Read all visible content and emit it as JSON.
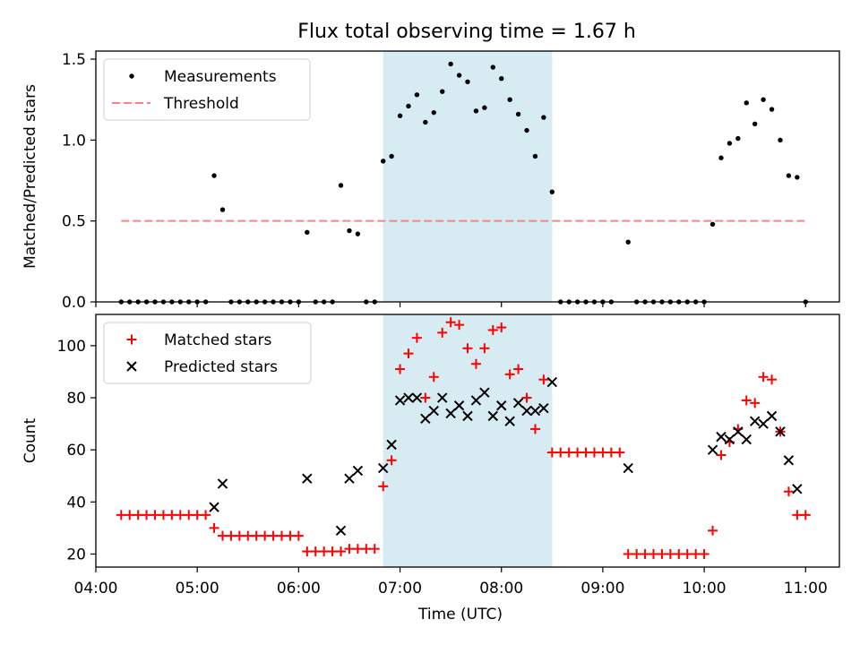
{
  "figure": {
    "title": "Flux total observing time = 1.67 h"
  },
  "chart_data": [
    {
      "type": "scatter",
      "ylabel": "Matched/Predicted stars",
      "xlabel": "",
      "xlim": [
        "04:00",
        "11:20"
      ],
      "ylim": [
        0,
        1.55
      ],
      "y_ticks": [
        0.0,
        0.5,
        1.0,
        1.5
      ],
      "y_tick_labels": [
        "0.0",
        "0.5",
        "1.0",
        "1.5"
      ],
      "x_tick_labels_visible": false,
      "legend": {
        "location": "upper-left",
        "entries": [
          "Measurements",
          "Threshold"
        ]
      },
      "shaded_region": {
        "x": [
          "06:50",
          "08:30"
        ],
        "color": "#add8e6"
      },
      "threshold": {
        "name": "Threshold",
        "x": [
          "04:15",
          "11:00"
        ],
        "y": 0.5,
        "color": "#ff8080",
        "style": "dashed"
      },
      "series": [
        {
          "name": "Measurements",
          "marker": "dot",
          "color": "#000000",
          "points": [
            [
              "04:15",
              0
            ],
            [
              "04:20",
              0
            ],
            [
              "04:25",
              0
            ],
            [
              "04:30",
              0
            ],
            [
              "04:35",
              0
            ],
            [
              "04:40",
              0
            ],
            [
              "04:45",
              0
            ],
            [
              "04:50",
              0
            ],
            [
              "04:55",
              0
            ],
            [
              "05:00",
              0
            ],
            [
              "05:05",
              0
            ],
            [
              "05:10",
              0.78
            ],
            [
              "05:15",
              0.57
            ],
            [
              "05:20",
              0
            ],
            [
              "05:25",
              0
            ],
            [
              "05:30",
              0
            ],
            [
              "05:35",
              0
            ],
            [
              "05:40",
              0
            ],
            [
              "05:45",
              0
            ],
            [
              "05:50",
              0
            ],
            [
              "05:55",
              0
            ],
            [
              "06:00",
              0
            ],
            [
              "06:05",
              0.43
            ],
            [
              "06:10",
              0
            ],
            [
              "06:15",
              0
            ],
            [
              "06:20",
              0
            ],
            [
              "06:25",
              0.72
            ],
            [
              "06:30",
              0.44
            ],
            [
              "06:35",
              0.42
            ],
            [
              "06:40",
              0
            ],
            [
              "06:45",
              0
            ],
            [
              "06:50",
              0.87
            ],
            [
              "06:55",
              0.9
            ],
            [
              "07:00",
              1.15
            ],
            [
              "07:05",
              1.21
            ],
            [
              "07:10",
              1.28
            ],
            [
              "07:15",
              1.11
            ],
            [
              "07:20",
              1.17
            ],
            [
              "07:25",
              1.3
            ],
            [
              "07:30",
              1.47
            ],
            [
              "07:35",
              1.4
            ],
            [
              "07:40",
              1.36
            ],
            [
              "07:45",
              1.18
            ],
            [
              "07:50",
              1.2
            ],
            [
              "07:55",
              1.45
            ],
            [
              "08:00",
              1.38
            ],
            [
              "08:05",
              1.25
            ],
            [
              "08:10",
              1.16
            ],
            [
              "08:15",
              1.06
            ],
            [
              "08:20",
              0.9
            ],
            [
              "08:25",
              1.14
            ],
            [
              "08:30",
              0.68
            ],
            [
              "08:35",
              0
            ],
            [
              "08:40",
              0
            ],
            [
              "08:45",
              0
            ],
            [
              "08:50",
              0
            ],
            [
              "08:55",
              0
            ],
            [
              "09:00",
              0
            ],
            [
              "09:05",
              0
            ],
            [
              "09:15",
              0.37
            ],
            [
              "09:20",
              0
            ],
            [
              "09:25",
              0
            ],
            [
              "09:30",
              0
            ],
            [
              "09:35",
              0
            ],
            [
              "09:40",
              0
            ],
            [
              "09:45",
              0
            ],
            [
              "09:50",
              0
            ],
            [
              "09:55",
              0
            ],
            [
              "10:00",
              0
            ],
            [
              "10:05",
              0.48
            ],
            [
              "10:10",
              0.89
            ],
            [
              "10:15",
              0.98
            ],
            [
              "10:20",
              1.01
            ],
            [
              "10:25",
              1.23
            ],
            [
              "10:30",
              1.1
            ],
            [
              "10:35",
              1.25
            ],
            [
              "10:40",
              1.19
            ],
            [
              "10:45",
              1.0
            ],
            [
              "10:50",
              0.78
            ],
            [
              "10:55",
              0.77
            ],
            [
              "11:00",
              0
            ]
          ]
        }
      ]
    },
    {
      "type": "scatter",
      "ylabel": "Count",
      "xlabel": "Time (UTC)",
      "xlim": [
        "04:00",
        "11:20"
      ],
      "ylim": [
        15,
        112
      ],
      "y_ticks": [
        20,
        40,
        60,
        80,
        100
      ],
      "y_tick_labels": [
        "20",
        "40",
        "60",
        "80",
        "100"
      ],
      "x_ticks": [
        "04:00",
        "05:00",
        "06:00",
        "07:00",
        "08:00",
        "09:00",
        "10:00",
        "11:00"
      ],
      "legend": {
        "location": "upper-left",
        "entries": [
          "Matched stars",
          "Predicted stars"
        ]
      },
      "shaded_region": {
        "x": [
          "06:50",
          "08:30"
        ],
        "color": "#add8e6"
      },
      "series": [
        {
          "name": "Matched stars",
          "marker": "plus",
          "color": "#ff0000",
          "points": [
            [
              "04:15",
              35
            ],
            [
              "04:20",
              35
            ],
            [
              "04:25",
              35
            ],
            [
              "04:30",
              35
            ],
            [
              "04:35",
              35
            ],
            [
              "04:40",
              35
            ],
            [
              "04:45",
              35
            ],
            [
              "04:50",
              35
            ],
            [
              "04:55",
              35
            ],
            [
              "05:00",
              35
            ],
            [
              "05:05",
              35
            ],
            [
              "05:10",
              30
            ],
            [
              "05:15",
              27
            ],
            [
              "05:20",
              27
            ],
            [
              "05:25",
              27
            ],
            [
              "05:30",
              27
            ],
            [
              "05:35",
              27
            ],
            [
              "05:40",
              27
            ],
            [
              "05:45",
              27
            ],
            [
              "05:50",
              27
            ],
            [
              "05:55",
              27
            ],
            [
              "06:00",
              27
            ],
            [
              "06:05",
              21
            ],
            [
              "06:10",
              21
            ],
            [
              "06:15",
              21
            ],
            [
              "06:20",
              21
            ],
            [
              "06:25",
              21
            ],
            [
              "06:30",
              22
            ],
            [
              "06:35",
              22
            ],
            [
              "06:40",
              22
            ],
            [
              "06:45",
              22
            ],
            [
              "06:50",
              46
            ],
            [
              "06:55",
              56
            ],
            [
              "07:00",
              91
            ],
            [
              "07:05",
              97
            ],
            [
              "07:10",
              103
            ],
            [
              "07:15",
              80
            ],
            [
              "07:20",
              88
            ],
            [
              "07:25",
              105
            ],
            [
              "07:30",
              109
            ],
            [
              "07:35",
              108
            ],
            [
              "07:40",
              99
            ],
            [
              "07:45",
              93
            ],
            [
              "07:50",
              99
            ],
            [
              "07:55",
              106
            ],
            [
              "08:00",
              107
            ],
            [
              "08:05",
              89
            ],
            [
              "08:10",
              91
            ],
            [
              "08:15",
              80
            ],
            [
              "08:20",
              68
            ],
            [
              "08:25",
              87
            ],
            [
              "08:30",
              59
            ],
            [
              "08:35",
              59
            ],
            [
              "08:40",
              59
            ],
            [
              "08:45",
              59
            ],
            [
              "08:50",
              59
            ],
            [
              "08:55",
              59
            ],
            [
              "09:00",
              59
            ],
            [
              "09:05",
              59
            ],
            [
              "09:10",
              59
            ],
            [
              "09:15",
              20
            ],
            [
              "09:20",
              20
            ],
            [
              "09:25",
              20
            ],
            [
              "09:30",
              20
            ],
            [
              "09:35",
              20
            ],
            [
              "09:40",
              20
            ],
            [
              "09:45",
              20
            ],
            [
              "09:50",
              20
            ],
            [
              "09:55",
              20
            ],
            [
              "10:00",
              20
            ],
            [
              "10:05",
              29
            ],
            [
              "10:10",
              58
            ],
            [
              "10:15",
              63
            ],
            [
              "10:20",
              68
            ],
            [
              "10:25",
              79
            ],
            [
              "10:30",
              78
            ],
            [
              "10:35",
              88
            ],
            [
              "10:40",
              87
            ],
            [
              "10:45",
              67
            ],
            [
              "10:50",
              44
            ],
            [
              "10:55",
              35
            ],
            [
              "11:00",
              35
            ]
          ]
        },
        {
          "name": "Predicted stars",
          "marker": "x",
          "color": "#000000",
          "points": [
            [
              "05:10",
              38
            ],
            [
              "05:15",
              47
            ],
            [
              "06:05",
              49
            ],
            [
              "06:25",
              29
            ],
            [
              "06:30",
              49
            ],
            [
              "06:35",
              52
            ],
            [
              "06:50",
              53
            ],
            [
              "06:55",
              62
            ],
            [
              "07:00",
              79
            ],
            [
              "07:05",
              80
            ],
            [
              "07:10",
              80
            ],
            [
              "07:15",
              72
            ],
            [
              "07:20",
              75
            ],
            [
              "07:25",
              80
            ],
            [
              "07:30",
              74
            ],
            [
              "07:35",
              77
            ],
            [
              "07:40",
              73
            ],
            [
              "07:45",
              79
            ],
            [
              "07:50",
              82
            ],
            [
              "07:55",
              73
            ],
            [
              "08:00",
              77
            ],
            [
              "08:05",
              71
            ],
            [
              "08:10",
              78
            ],
            [
              "08:15",
              75
            ],
            [
              "08:20",
              75
            ],
            [
              "08:25",
              76
            ],
            [
              "08:30",
              86
            ],
            [
              "09:15",
              53
            ],
            [
              "10:05",
              60
            ],
            [
              "10:10",
              65
            ],
            [
              "10:15",
              64
            ],
            [
              "10:20",
              67
            ],
            [
              "10:25",
              64
            ],
            [
              "10:30",
              71
            ],
            [
              "10:35",
              70
            ],
            [
              "10:40",
              73
            ],
            [
              "10:45",
              67
            ],
            [
              "10:50",
              56
            ],
            [
              "10:55",
              45
            ]
          ]
        }
      ]
    }
  ]
}
